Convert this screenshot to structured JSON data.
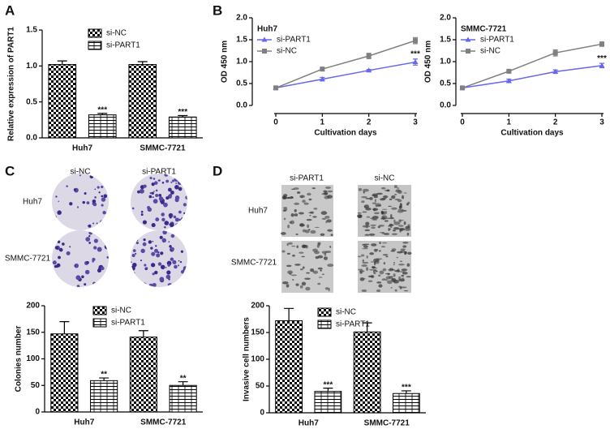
{
  "panels": [
    "A",
    "B",
    "C",
    "D"
  ],
  "images": [
    {
      "columns": [
        "si-NC",
        "si-PART1"
      ],
      "rows": [
        "Huh7",
        "SMMC-7721"
      ]
    },
    {
      "columns": [
        "si-PART1",
        "si-NC"
      ],
      "rows": [
        "Huh7",
        "SMMC-7721"
      ]
    }
  ],
  "chart_data": [
    {
      "type": "bar",
      "y_label": "Relative expression of PART1",
      "categories": [
        "Huh7",
        "SMMC-7721"
      ],
      "series": [
        {
          "name": "si-NC",
          "color": "#000000",
          "pattern": "checker",
          "values": [
            1.02,
            1.02
          ],
          "errors": [
            0.05,
            0.04
          ]
        },
        {
          "name": "si-PART1",
          "color": "#000000",
          "pattern": "hlines",
          "values": [
            0.32,
            0.29
          ],
          "errors": [
            0.02,
            0.02
          ],
          "annotations": [
            "***",
            "***"
          ]
        }
      ],
      "ylim": [
        0,
        1.5
      ],
      "yticks": [
        {
          "value": 0,
          "label": "0.0"
        },
        0.5,
        {
          "value": 1,
          "label": "1.0"
        },
        1.5
      ]
    },
    {
      "type": "line",
      "subtitle": "Huh7",
      "x_label": "Cultivation days",
      "y_label": "OD 450 nm",
      "x": [
        0,
        1,
        2,
        3
      ],
      "series": [
        {
          "name": "si-PART1",
          "color": "#6666ee",
          "marker": "triangle",
          "values": [
            0.4,
            0.6,
            0.8,
            0.99
          ],
          "errors": [
            0.02,
            0.04,
            0.02,
            0.07
          ],
          "annotations": [
            null,
            null,
            null,
            "***"
          ]
        },
        {
          "name": "si-NC",
          "color": "#808080",
          "marker": "square",
          "values": [
            0.4,
            0.83,
            1.13,
            1.48
          ],
          "errors": [
            0.02,
            0.04,
            0.06,
            0.07
          ]
        }
      ],
      "xlim": [
        0,
        3
      ],
      "xticks": [
        0,
        1,
        2,
        3
      ],
      "ylim": [
        0,
        2
      ],
      "yticks": [
        {
          "value": 0,
          "label": "0.0"
        },
        0.5,
        {
          "value": 1,
          "label": "1.0"
        },
        1.5,
        {
          "value": 2,
          "label": "2.0"
        }
      ]
    },
    {
      "type": "line",
      "subtitle": "SMMC-7721",
      "x_label": "Cultivation days",
      "y_label": "OD 450 nm",
      "x": [
        0,
        1,
        2,
        3
      ],
      "series": [
        {
          "name": "si-PART1",
          "color": "#6666ee",
          "marker": "triangle",
          "values": [
            0.4,
            0.56,
            0.77,
            0.91
          ],
          "errors": [
            0.02,
            0.04,
            0.04,
            0.05
          ],
          "annotations": [
            null,
            null,
            null,
            "***"
          ]
        },
        {
          "name": "si-NC",
          "color": "#808080",
          "marker": "square",
          "values": [
            0.4,
            0.78,
            1.2,
            1.4
          ],
          "errors": [
            0.02,
            0.02,
            0.07,
            0.05
          ]
        }
      ],
      "xlim": [
        0,
        3
      ],
      "xticks": [
        0,
        1,
        2,
        3
      ],
      "ylim": [
        0,
        2
      ],
      "yticks": [
        {
          "value": 0,
          "label": "0.0"
        },
        0.5,
        {
          "value": 1,
          "label": "1.0"
        },
        1.5,
        {
          "value": 2,
          "label": "2.0"
        }
      ]
    },
    {
      "type": "bar",
      "y_label": "Colonies number",
      "categories": [
        "Huh7",
        "SMMC-7721"
      ],
      "series": [
        {
          "name": "si-NC",
          "color": "#000000",
          "pattern": "checker",
          "values": [
            147,
            141
          ],
          "errors": [
            23,
            12
          ]
        },
        {
          "name": "si-PART1",
          "color": "#000000",
          "pattern": "hlines",
          "values": [
            59,
            50
          ],
          "errors": [
            5,
            7
          ],
          "annotations": [
            "**",
            "**"
          ]
        }
      ],
      "ylim": [
        0,
        200
      ],
      "yticks": [
        0,
        50,
        100,
        150,
        200
      ]
    },
    {
      "type": "bar",
      "y_label": "Invasive cell numbers",
      "categories": [
        "Huh7",
        "SMMC-7721"
      ],
      "series": [
        {
          "name": "si-NC",
          "color": "#000000",
          "pattern": "checker",
          "values": [
            172,
            151
          ],
          "errors": [
            23,
            17
          ]
        },
        {
          "name": "si-PART1",
          "color": "#000000",
          "pattern": "hlines",
          "values": [
            40,
            36
          ],
          "errors": [
            6,
            5
          ],
          "annotations": [
            "***",
            "***"
          ]
        }
      ],
      "ylim": [
        0,
        200
      ],
      "yticks": [
        0,
        50,
        100,
        150,
        200
      ]
    }
  ]
}
